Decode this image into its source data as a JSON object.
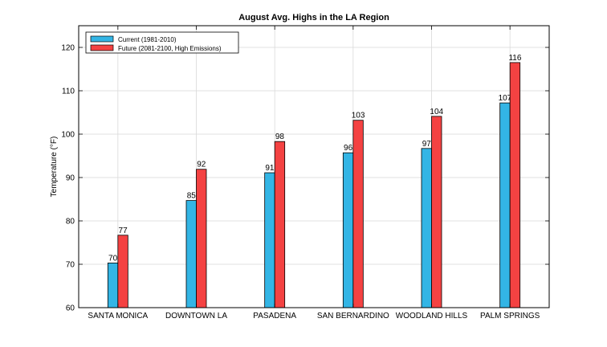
{
  "chart_data": {
    "type": "bar",
    "title": "August Avg. Highs in the LA Region",
    "xlabel": "",
    "ylabel": "Temperature (°F)",
    "ylim": [
      60,
      125
    ],
    "yticks": [
      60,
      70,
      80,
      90,
      100,
      110,
      120
    ],
    "grid": true,
    "legend_position": "top-left",
    "categories": [
      "SANTA MONICA",
      "DOWNTOWN LA",
      "PASADENA",
      "SAN BERNARDINO",
      "WOODLAND HILLS",
      "PALM SPRINGS"
    ],
    "series": [
      {
        "name": "Current (1981-2010)",
        "color": "#33b5e5",
        "values": [
          70.3,
          84.7,
          91.1,
          95.7,
          96.7,
          107.2
        ],
        "labels": [
          "70",
          "85",
          "91",
          "96",
          "97",
          "107"
        ]
      },
      {
        "name": "Future (2081-2100, High Emissions)",
        "color": "#f44242",
        "values": [
          76.7,
          91.9,
          98.3,
          103.2,
          104.1,
          116.5
        ],
        "labels": [
          "77",
          "92",
          "98",
          "103",
          "104",
          "116"
        ]
      }
    ]
  }
}
